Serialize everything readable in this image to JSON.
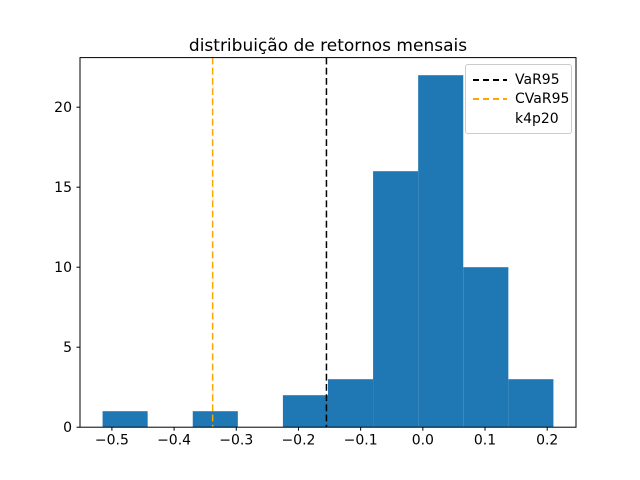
{
  "title": "distribuição de retornos mensais",
  "colors": {
    "background": "#ffffff",
    "bar": "#1f77b4",
    "var_line": "#000000",
    "cvar_line": "#ffa500",
    "axis": "#000000",
    "tick_label": "#000000",
    "legend_border": "#cccccc"
  },
  "legend": {
    "entries": [
      {
        "label": "VaR95",
        "color": "#000000",
        "dashed": true
      },
      {
        "label": "CVaR95",
        "color": "#ffa500",
        "dashed": true
      },
      {
        "label": "k4p20",
        "color": null,
        "dashed": false
      }
    ]
  },
  "chart_data": {
    "type": "bar",
    "subtype": "histogram",
    "title": "distribuição de retornos mensais",
    "xlabel": "",
    "ylabel": "",
    "bin_edges": [
      -0.515,
      -0.4425,
      -0.37,
      -0.2975,
      -0.225,
      -0.1525,
      -0.08,
      -0.0075,
      0.065,
      0.1375,
      0.21
    ],
    "counts": [
      1,
      0,
      1,
      0,
      2,
      3,
      16,
      22,
      10,
      3
    ],
    "total_observations": 58,
    "vlines": [
      {
        "name": "VaR95",
        "x": -0.155,
        "color": "#000000",
        "style": "dashed"
      },
      {
        "name": "CVaR95",
        "x": -0.338,
        "color": "#ffa500",
        "style": "dashed"
      }
    ],
    "xticks": [
      -0.5,
      -0.4,
      -0.3,
      -0.2,
      -0.1,
      0.0,
      0.1,
      0.2
    ],
    "xtick_labels": [
      "−0.5",
      "−0.4",
      "−0.3",
      "−0.2",
      "−0.1",
      "0.0",
      "0.1",
      "0.2"
    ],
    "yticks": [
      0,
      5,
      10,
      15,
      20
    ],
    "ytick_labels": [
      "0",
      "5",
      "10",
      "15",
      "20"
    ],
    "xlim": [
      -0.5513,
      0.2463
    ],
    "ylim": [
      0,
      23.1
    ],
    "grid": false,
    "legend_entries": [
      "VaR95",
      "CVaR95",
      "k4p20"
    ],
    "legend_position": "upper right"
  }
}
